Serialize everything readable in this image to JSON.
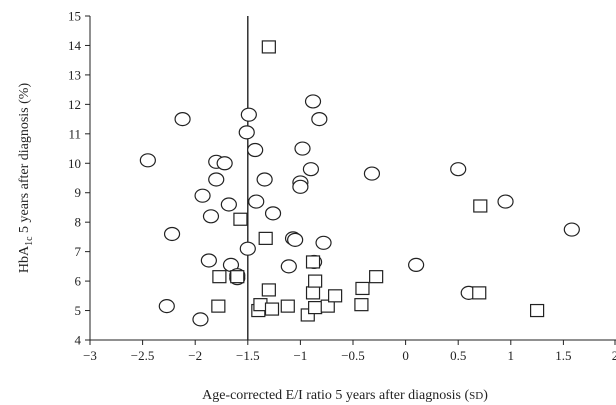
{
  "chart_data": {
    "type": "scatter",
    "title": "",
    "xlabel": {
      "text": "Age-corrected E/I ratio 5 years after diagnosis (",
      "unit": "SD",
      "close": ")"
    },
    "ylabel": {
      "pre": "HbA",
      "sub": "1c",
      "post": " 5 years  after diagnosis (%)"
    },
    "xlim": [
      -3,
      2
    ],
    "ylim": [
      4,
      15
    ],
    "xticks": [
      "−3",
      "−2.5",
      "−2",
      "−1.5",
      "−1",
      "−0.5",
      "0",
      "0.5",
      "1",
      "1.5",
      "2"
    ],
    "yticks": [
      "4",
      "5",
      "6",
      "7",
      "8",
      "9",
      "10",
      "11",
      "12",
      "13",
      "14",
      "15"
    ],
    "grid": false,
    "reference_line_x": -1.5,
    "series": [
      {
        "marker": "circle",
        "points": [
          [
            -2.45,
            10.1
          ],
          [
            -2.12,
            11.5
          ],
          [
            -2.22,
            7.6
          ],
          [
            -2.27,
            5.15
          ],
          [
            -1.95,
            4.7
          ],
          [
            -1.93,
            8.9
          ],
          [
            -1.87,
            6.7
          ],
          [
            -1.85,
            8.2
          ],
          [
            -1.8,
            10.05
          ],
          [
            -1.8,
            9.45
          ],
          [
            -1.72,
            10.0
          ],
          [
            -1.68,
            8.6
          ],
          [
            -1.66,
            6.55
          ],
          [
            -1.6,
            6.1
          ],
          [
            -1.6,
            6.2
          ],
          [
            -1.51,
            11.05
          ],
          [
            -1.49,
            11.65
          ],
          [
            -1.5,
            7.1
          ],
          [
            -1.43,
            10.45
          ],
          [
            -1.42,
            8.7
          ],
          [
            -1.34,
            9.45
          ],
          [
            -1.26,
            8.3
          ],
          [
            -1.11,
            6.5
          ],
          [
            -1.07,
            7.45
          ],
          [
            -1.05,
            7.4
          ],
          [
            -1.0,
            9.35
          ],
          [
            -1.0,
            9.2
          ],
          [
            -0.98,
            10.5
          ],
          [
            -0.9,
            9.8
          ],
          [
            -0.88,
            12.1
          ],
          [
            -0.87,
            6.65
          ],
          [
            -0.82,
            11.5
          ],
          [
            -0.78,
            7.3
          ],
          [
            -0.32,
            9.65
          ],
          [
            0.1,
            6.55
          ],
          [
            0.5,
            9.8
          ],
          [
            0.6,
            5.6
          ],
          [
            0.95,
            8.7
          ],
          [
            1.58,
            7.75
          ]
        ]
      },
      {
        "marker": "square",
        "points": [
          [
            -1.3,
            13.95
          ],
          [
            -1.57,
            8.1
          ],
          [
            -1.33,
            7.45
          ],
          [
            -1.77,
            6.15
          ],
          [
            -1.6,
            6.15
          ],
          [
            -1.78,
            5.15
          ],
          [
            -1.4,
            5.0
          ],
          [
            -1.38,
            5.2
          ],
          [
            -1.3,
            5.7
          ],
          [
            -1.27,
            5.05
          ],
          [
            -1.12,
            5.15
          ],
          [
            -0.93,
            4.85
          ],
          [
            -0.86,
            5.1
          ],
          [
            -0.88,
            5.6
          ],
          [
            -0.86,
            6.0
          ],
          [
            -0.88,
            6.65
          ],
          [
            -0.74,
            5.15
          ],
          [
            -0.67,
            5.5
          ],
          [
            -0.42,
            5.2
          ],
          [
            -0.41,
            5.75
          ],
          [
            -0.28,
            6.15
          ],
          [
            0.71,
            8.55
          ],
          [
            0.7,
            5.6
          ],
          [
            1.25,
            5.0
          ]
        ]
      }
    ]
  }
}
